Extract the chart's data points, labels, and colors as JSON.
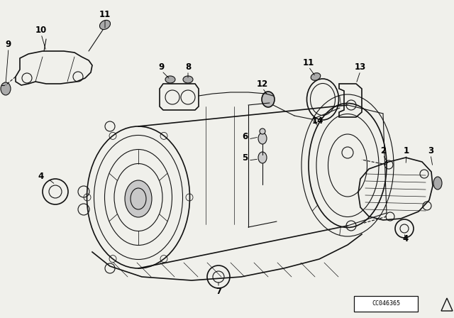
{
  "bg_color": "#f0f0eb",
  "diagram_code": "CC046365",
  "line_color": "#111111",
  "text_color": "#000000",
  "font_size": 8.5,
  "figsize": [
    6.4,
    4.48
  ],
  "dpi": 100
}
